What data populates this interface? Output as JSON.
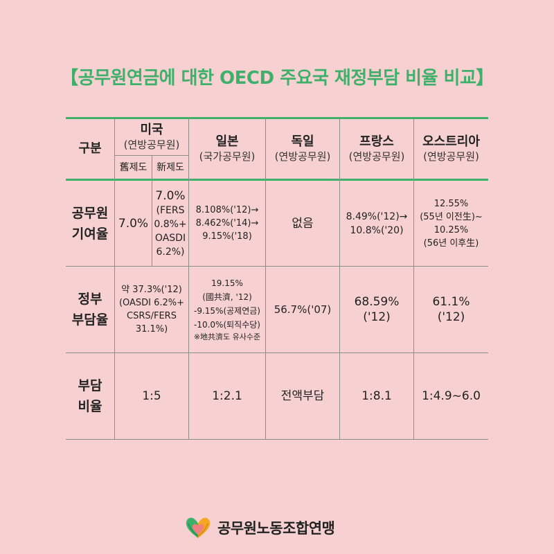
{
  "title": "【공무원연금에 대한 OECD 주요국 재정부담 비율 비교】",
  "header": {
    "category": "구분",
    "usa": {
      "name": "미국",
      "sub": "(연방공무원)",
      "old": "舊제도",
      "new": "新제도"
    },
    "japan": {
      "name": "일본",
      "sub": "(국가공무원)"
    },
    "germany": {
      "name": "독일",
      "sub": "(연방공무원)"
    },
    "france": {
      "name": "프랑스",
      "sub": "(연방공무원)"
    },
    "austria": {
      "name": "오스트리아",
      "sub": "(연방공무원)"
    }
  },
  "rows": {
    "contribution": {
      "label_1": "공무원",
      "label_2": "기여율",
      "usa_old": "7.0%",
      "usa_new": [
        "7.0%",
        "(FERS",
        "0.8%+",
        "OASDI",
        "6.2%)"
      ],
      "japan": [
        "8.108%('12)→",
        "8.462%('14)→",
        "9.15%('18)"
      ],
      "germany": "없음",
      "france": [
        "8.49%('12)→",
        "10.8%('20)"
      ],
      "austria": [
        "12.55%",
        "(55년 이전生)~",
        "10.25%",
        "(56년 이후生)"
      ]
    },
    "government": {
      "label_1": "정부",
      "label_2": "부담율",
      "usa": [
        "약 37.3%('12)",
        "(OASDI 6.2%+",
        "CSRS/FERS",
        "31.1%)"
      ],
      "japan": [
        "19.15%",
        "(國共濟, '12)",
        "-9.15%(공제연금)",
        "-10.0%(퇴직수당)"
      ],
      "japan_note": "※地共濟도 유사수준",
      "germany": "56.7%('07)",
      "france": [
        "68.59%",
        "('12)"
      ],
      "austria": [
        "61.1%",
        "('12)"
      ]
    },
    "ratio": {
      "label_1": "부담",
      "label_2": "비율",
      "usa": "1:5",
      "japan": "1:2.1",
      "germany": "전액부담",
      "france": "1:8.1",
      "austria": "1:4.9~6.0"
    }
  },
  "footer": {
    "org": "공무원노동조합연맹"
  },
  "colors": {
    "background": "#f7d1d1",
    "accent": "#3fb06a",
    "text": "#222222"
  }
}
